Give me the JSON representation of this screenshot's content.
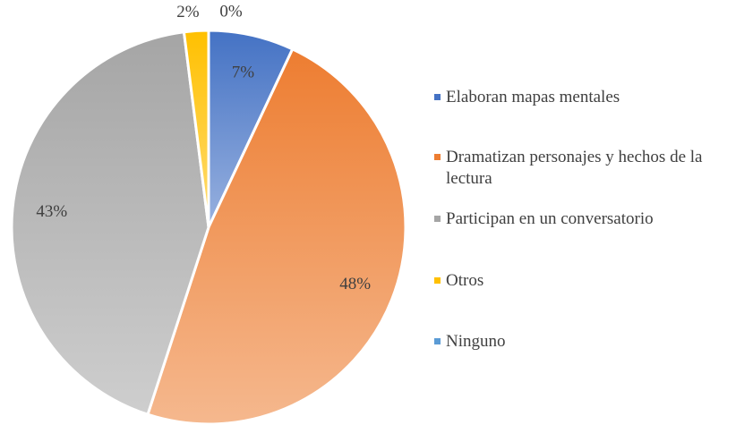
{
  "chart_data": {
    "type": "pie",
    "categories": [
      "Elaboran mapas mentales",
      "Dramatizan personajes y hechos de la lectura",
      "Participan en un conversatorio",
      "Otros",
      "Ninguno"
    ],
    "values": [
      7,
      48,
      43,
      2,
      0
    ],
    "value_labels": [
      "7%",
      "48%",
      "43%",
      "2%",
      "0%"
    ],
    "colors": [
      "#4472c4",
      "#ed7d31",
      "#a5a5a5",
      "#ffc000",
      "#5b9bd5"
    ],
    "legend": "right"
  }
}
